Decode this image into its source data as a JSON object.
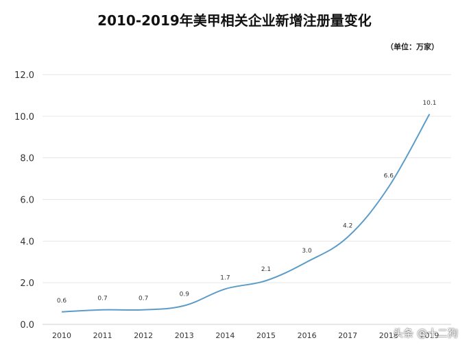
{
  "chart_data": {
    "type": "line",
    "title": "2010-2019年美甲相关企业新增注册量变化",
    "unit_note": "（单位：万家）",
    "x": [
      "2010",
      "2011",
      "2012",
      "2013",
      "2014",
      "2015",
      "2016",
      "2017",
      "2018",
      "2019"
    ],
    "series": [
      {
        "values": [
          0.6,
          0.7,
          0.7,
          0.9,
          1.7,
          2.1,
          3.0,
          4.2,
          6.6,
          10.1
        ]
      }
    ],
    "data_labels": [
      "0.6",
      "0.7",
      "0.7",
      "0.9",
      "1.7",
      "2.1",
      "3.0",
      "4.2",
      "6.6",
      "10.1"
    ],
    "y_ticks": [
      "0.0",
      "2.0",
      "4.0",
      "6.0",
      "8.0",
      "10.0",
      "12.0"
    ],
    "ylim": [
      0,
      12
    ],
    "grid": true,
    "line_color": "#5b9bc8",
    "grid_color": "#e6e6e6"
  },
  "watermark": "头条 @十二狗"
}
